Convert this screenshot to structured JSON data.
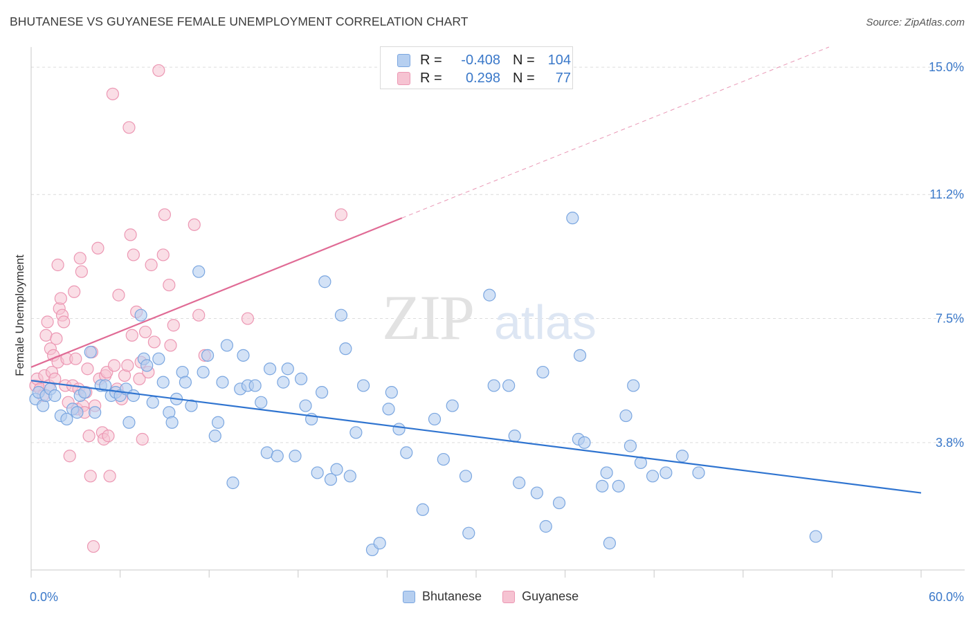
{
  "title": "BHUTANESE VS GUYANESE FEMALE UNEMPLOYMENT CORRELATION CHART",
  "source": "Source: ZipAtlas.com",
  "watermark": {
    "zip": "ZIP",
    "atlas": "atlas"
  },
  "stats_legend": {
    "r_label": "R =",
    "n_label": "N =",
    "rows": [
      {
        "series": "Bhutanese",
        "r": "-0.408",
        "n": "104"
      },
      {
        "series": "Guyanese",
        "r": "0.298",
        "n": "77"
      }
    ]
  },
  "legend": {
    "items": [
      "Bhutanese",
      "Guyanese"
    ]
  },
  "colors": {
    "bhutanese_fill": "#b6cff0",
    "bhutanese_stroke": "#7aa6e0",
    "bhutanese_line": "#2f74d0",
    "guyanese_fill": "#f6c3d2",
    "guyanese_stroke": "#ec97b3",
    "guyanese_line": "#e06b95",
    "tick_label": "#3a78c9",
    "grid": "#dcdcdc"
  },
  "chart_data": {
    "type": "scatter",
    "title": "BHUTANESE VS GUYANESE FEMALE UNEMPLOYMENT CORRELATION CHART",
    "xlabel": "",
    "ylabel": "Female Unemployment",
    "xlim": [
      0,
      60
    ],
    "ylim": [
      0,
      15.6
    ],
    "x_tick_labels": [
      "0.0%",
      "60.0%"
    ],
    "y_ticks": [
      3.8,
      7.5,
      11.2,
      15.0
    ],
    "y_tick_labels": [
      "3.8%",
      "7.5%",
      "11.2%",
      "15.0%"
    ],
    "grid": true,
    "legend_position": "bottom",
    "series": [
      {
        "name": "Bhutanese",
        "trend": {
          "x0": 0,
          "y0": 5.65,
          "x1": 60,
          "y1": 2.3
        },
        "points": [
          [
            0.3,
            5.1
          ],
          [
            0.5,
            5.3
          ],
          [
            0.8,
            4.9
          ],
          [
            1.0,
            5.2
          ],
          [
            1.3,
            5.4
          ],
          [
            1.6,
            5.2
          ],
          [
            2.0,
            4.6
          ],
          [
            2.4,
            4.5
          ],
          [
            2.8,
            4.8
          ],
          [
            3.1,
            4.7
          ],
          [
            3.3,
            5.2
          ],
          [
            3.6,
            5.3
          ],
          [
            4.0,
            6.5
          ],
          [
            4.3,
            4.7
          ],
          [
            4.7,
            5.5
          ],
          [
            5.0,
            5.5
          ],
          [
            5.4,
            5.2
          ],
          [
            5.7,
            5.3
          ],
          [
            6.0,
            5.2
          ],
          [
            6.4,
            5.4
          ],
          [
            6.6,
            4.4
          ],
          [
            6.9,
            5.2
          ],
          [
            7.4,
            7.6
          ],
          [
            7.6,
            6.3
          ],
          [
            7.8,
            6.1
          ],
          [
            8.2,
            5.0
          ],
          [
            8.6,
            6.3
          ],
          [
            8.9,
            5.6
          ],
          [
            9.3,
            4.7
          ],
          [
            9.5,
            4.4
          ],
          [
            9.8,
            5.1
          ],
          [
            10.2,
            5.9
          ],
          [
            10.4,
            5.6
          ],
          [
            10.8,
            4.9
          ],
          [
            11.3,
            8.9
          ],
          [
            11.6,
            5.9
          ],
          [
            11.9,
            6.4
          ],
          [
            12.4,
            4.0
          ],
          [
            12.6,
            4.4
          ],
          [
            12.9,
            5.6
          ],
          [
            13.2,
            6.7
          ],
          [
            13.6,
            2.6
          ],
          [
            14.1,
            5.4
          ],
          [
            14.3,
            6.4
          ],
          [
            14.6,
            5.5
          ],
          [
            15.1,
            5.5
          ],
          [
            15.5,
            5.0
          ],
          [
            15.9,
            3.5
          ],
          [
            16.1,
            6.0
          ],
          [
            16.6,
            3.4
          ],
          [
            17.0,
            5.6
          ],
          [
            17.3,
            6.0
          ],
          [
            17.8,
            3.4
          ],
          [
            18.2,
            5.7
          ],
          [
            18.5,
            4.9
          ],
          [
            18.9,
            4.5
          ],
          [
            19.3,
            2.9
          ],
          [
            19.6,
            5.3
          ],
          [
            19.8,
            8.6
          ],
          [
            20.2,
            2.7
          ],
          [
            20.6,
            3.0
          ],
          [
            20.9,
            7.6
          ],
          [
            21.2,
            6.6
          ],
          [
            21.5,
            2.8
          ],
          [
            21.9,
            4.1
          ],
          [
            22.4,
            5.5
          ],
          [
            23.0,
            0.6
          ],
          [
            23.5,
            0.8
          ],
          [
            24.1,
            4.8
          ],
          [
            24.3,
            5.3
          ],
          [
            24.8,
            4.2
          ],
          [
            25.3,
            3.5
          ],
          [
            26.4,
            1.8
          ],
          [
            27.2,
            4.5
          ],
          [
            27.8,
            3.3
          ],
          [
            28.4,
            4.9
          ],
          [
            29.3,
            2.8
          ],
          [
            29.5,
            1.1
          ],
          [
            30.9,
            8.2
          ],
          [
            31.2,
            5.5
          ],
          [
            32.2,
            5.5
          ],
          [
            32.6,
            4.0
          ],
          [
            32.9,
            2.6
          ],
          [
            34.1,
            2.3
          ],
          [
            34.5,
            5.9
          ],
          [
            34.7,
            1.3
          ],
          [
            35.6,
            2.0
          ],
          [
            36.5,
            10.5
          ],
          [
            37.0,
            6.4
          ],
          [
            36.9,
            3.9
          ],
          [
            37.3,
            3.8
          ],
          [
            38.5,
            2.5
          ],
          [
            38.8,
            2.9
          ],
          [
            39.0,
            0.8
          ],
          [
            39.6,
            2.5
          ],
          [
            40.1,
            4.6
          ],
          [
            40.4,
            3.7
          ],
          [
            40.6,
            5.5
          ],
          [
            41.1,
            3.2
          ],
          [
            41.9,
            2.8
          ],
          [
            42.8,
            2.9
          ],
          [
            43.9,
            3.4
          ],
          [
            45.0,
            2.9
          ],
          [
            52.9,
            1.0
          ]
        ]
      },
      {
        "name": "Guyanese",
        "trend": {
          "x0": 0,
          "y0": 6.05,
          "x1": 25,
          "y1": 10.5,
          "dash_to_x": 60,
          "dash_to_y": 16.7
        },
        "points": [
          [
            0.3,
            5.5
          ],
          [
            0.4,
            5.7
          ],
          [
            0.6,
            5.4
          ],
          [
            0.8,
            5.2
          ],
          [
            0.9,
            5.8
          ],
          [
            1.0,
            7.0
          ],
          [
            1.1,
            7.4
          ],
          [
            1.2,
            5.5
          ],
          [
            1.3,
            6.6
          ],
          [
            1.4,
            5.9
          ],
          [
            1.5,
            6.4
          ],
          [
            1.6,
            5.7
          ],
          [
            1.7,
            6.9
          ],
          [
            1.8,
            9.1
          ],
          [
            1.8,
            6.2
          ],
          [
            1.9,
            7.8
          ],
          [
            2.0,
            8.1
          ],
          [
            2.1,
            7.6
          ],
          [
            2.2,
            7.4
          ],
          [
            2.3,
            5.5
          ],
          [
            2.4,
            6.3
          ],
          [
            2.5,
            5.0
          ],
          [
            2.6,
            3.4
          ],
          [
            2.8,
            5.5
          ],
          [
            2.9,
            8.3
          ],
          [
            3.0,
            6.3
          ],
          [
            3.1,
            4.8
          ],
          [
            3.2,
            5.4
          ],
          [
            3.3,
            9.3
          ],
          [
            3.4,
            8.9
          ],
          [
            3.5,
            4.9
          ],
          [
            3.6,
            4.7
          ],
          [
            3.7,
            5.3
          ],
          [
            3.8,
            6.0
          ],
          [
            3.9,
            4.0
          ],
          [
            4.0,
            2.8
          ],
          [
            4.1,
            6.5
          ],
          [
            4.2,
            0.7
          ],
          [
            4.3,
            4.9
          ],
          [
            4.5,
            9.6
          ],
          [
            4.6,
            5.7
          ],
          [
            4.8,
            4.1
          ],
          [
            4.9,
            3.9
          ],
          [
            5.0,
            5.8
          ],
          [
            5.1,
            5.9
          ],
          [
            5.2,
            4.0
          ],
          [
            5.3,
            2.8
          ],
          [
            5.5,
            14.2
          ],
          [
            5.6,
            6.1
          ],
          [
            5.8,
            5.4
          ],
          [
            5.9,
            8.2
          ],
          [
            6.1,
            5.1
          ],
          [
            6.3,
            5.8
          ],
          [
            6.5,
            6.1
          ],
          [
            6.6,
            13.2
          ],
          [
            6.7,
            10.0
          ],
          [
            6.8,
            7.0
          ],
          [
            6.9,
            9.4
          ],
          [
            7.1,
            7.7
          ],
          [
            7.3,
            5.7
          ],
          [
            7.4,
            6.2
          ],
          [
            7.5,
            3.9
          ],
          [
            7.7,
            7.1
          ],
          [
            7.9,
            5.9
          ],
          [
            8.1,
            9.1
          ],
          [
            8.3,
            6.8
          ],
          [
            8.6,
            14.9
          ],
          [
            8.9,
            9.4
          ],
          [
            9.0,
            10.6
          ],
          [
            9.3,
            8.5
          ],
          [
            9.4,
            6.7
          ],
          [
            9.6,
            7.3
          ],
          [
            11.0,
            10.3
          ],
          [
            11.3,
            7.6
          ],
          [
            11.7,
            6.4
          ],
          [
            14.6,
            7.5
          ],
          [
            20.9,
            10.6
          ]
        ]
      }
    ]
  }
}
